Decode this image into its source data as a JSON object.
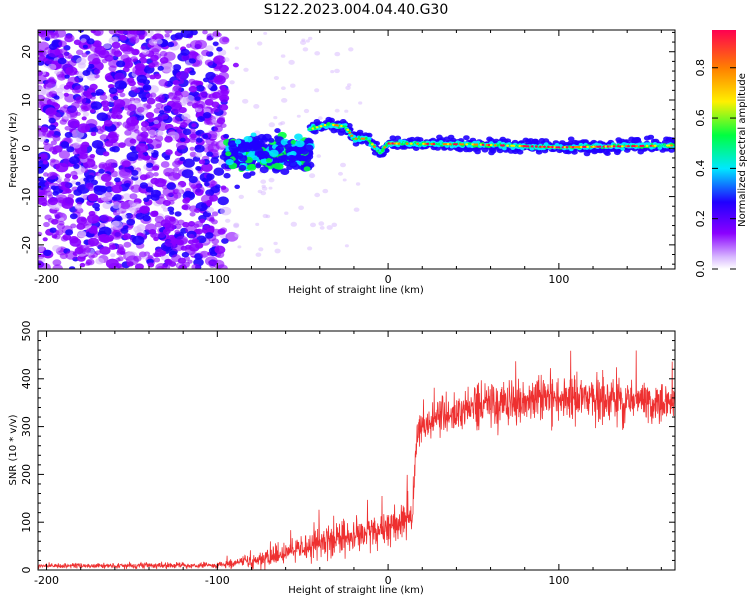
{
  "title": "S122.2023.004.04.40.G30",
  "chart_data": [
    {
      "type": "heatmap",
      "title": "S122.2023.004.04.40.G30",
      "xlabel": "Height of straight line (km)",
      "ylabel": "Frequency (Hz)",
      "xlim": [
        -205,
        168
      ],
      "ylim": [
        -25,
        24.5
      ],
      "xticks": [
        -200,
        -100,
        0,
        100
      ],
      "yticks": [
        -20,
        -10,
        0,
        10,
        20
      ],
      "colorbar": {
        "label": "Normalized spectral amplitude",
        "range": [
          0.0,
          0.95
        ],
        "ticks": [
          0.0,
          0.2,
          0.4,
          0.6,
          0.8
        ],
        "stops": [
          "#ffffff",
          "#d8b8ff",
          "#8a00ff",
          "#2000ff",
          "#00e8ff",
          "#00ff40",
          "#fff000",
          "#ff8000",
          "#ff0040"
        ]
      },
      "features": {
        "noise_region_x": [
          -205,
          -95
        ],
        "scattered_region_x": [
          -95,
          -45
        ],
        "signal_track": [
          {
            "x": -45,
            "y": 4
          },
          {
            "x": -35,
            "y": 5
          },
          {
            "x": -25,
            "y": 4.5
          },
          {
            "x": -20,
            "y": 2
          },
          {
            "x": -12,
            "y": 2
          },
          {
            "x": -5,
            "y": -1
          },
          {
            "x": 0,
            "y": 1
          },
          {
            "x": 50,
            "y": 0.8
          },
          {
            "x": 100,
            "y": 0.2
          },
          {
            "x": 168,
            "y": 0.6
          }
        ]
      }
    },
    {
      "type": "line",
      "xlabel": "Height of straight line (km)",
      "ylabel": "SNR (10 * v/v)",
      "xlim": [
        -205,
        168
      ],
      "ylim": [
        0,
        500
      ],
      "xticks": [
        -200,
        -100,
        0,
        100
      ],
      "yticks": [
        0,
        100,
        200,
        300,
        400,
        500
      ],
      "line_color": "#ee3030",
      "series": [
        {
          "name": "SNR",
          "anchors": [
            {
              "x": -205,
              "y": 8
            },
            {
              "x": -100,
              "y": 10
            },
            {
              "x": -85,
              "y": 15
            },
            {
              "x": -70,
              "y": 25
            },
            {
              "x": -50,
              "y": 45
            },
            {
              "x": -30,
              "y": 65
            },
            {
              "x": -10,
              "y": 80
            },
            {
              "x": 5,
              "y": 95
            },
            {
              "x": 14,
              "y": 110
            },
            {
              "x": 17,
              "y": 290
            },
            {
              "x": 30,
              "y": 320
            },
            {
              "x": 50,
              "y": 345
            },
            {
              "x": 100,
              "y": 360
            },
            {
              "x": 168,
              "y": 350
            }
          ],
          "noise_amplitude": [
            {
              "x": -205,
              "y": 5
            },
            {
              "x": -100,
              "y": 6
            },
            {
              "x": -80,
              "y": 15
            },
            {
              "x": -40,
              "y": 35
            },
            {
              "x": 14,
              "y": 40
            },
            {
              "x": 17,
              "y": 30
            },
            {
              "x": 50,
              "y": 50
            },
            {
              "x": 168,
              "y": 45
            }
          ]
        }
      ]
    }
  ]
}
